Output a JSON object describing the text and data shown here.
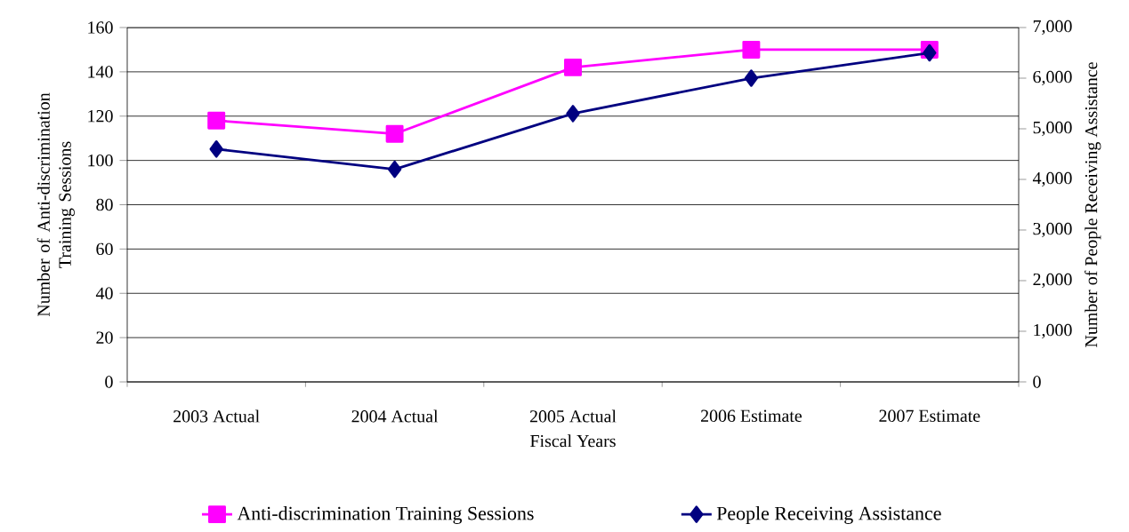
{
  "chart_data": {
    "type": "line",
    "xlabel": "Fiscal Years",
    "ylabel": "Number of Anti-discrimination Training Sessions",
    "y2label": "Number of People Receiving Assistance",
    "categories": [
      "2003 Actual",
      "2004 Actual",
      "2005  Actual",
      "2006 Estimate",
      "2007 Estimate"
    ],
    "series": [
      {
        "name": "Anti-discrimination Training Sessions",
        "color": "#ff00ff",
        "marker": "square",
        "values": [
          118,
          112,
          142,
          150,
          150
        ]
      },
      {
        "name": "People Receiving Assistance",
        "color": "#000080",
        "marker": "diamond",
        "axis": "y2",
        "values": [
          4600,
          4200,
          5300,
          6000,
          6500
        ]
      }
    ],
    "ylim": [
      0,
      160
    ],
    "yticks": [
      0,
      20,
      40,
      60,
      80,
      100,
      120,
      140,
      160
    ],
    "y2lim": [
      0,
      7000
    ],
    "y2ticks": [
      0,
      {
        "value": 1000,
        "label": "1,000"
      },
      {
        "value": 2000,
        "label": "2,000"
      },
      {
        "value": 3000,
        "label": "3,000"
      },
      {
        "value": 4000,
        "label": "4,000"
      },
      {
        "value": 5000,
        "label": "5,000"
      },
      {
        "value": 6000,
        "label": "6,000"
      },
      {
        "value": 7000,
        "label": "7,000"
      }
    ],
    "grid": "y",
    "legend": "bottom",
    "line_style": "solid"
  }
}
